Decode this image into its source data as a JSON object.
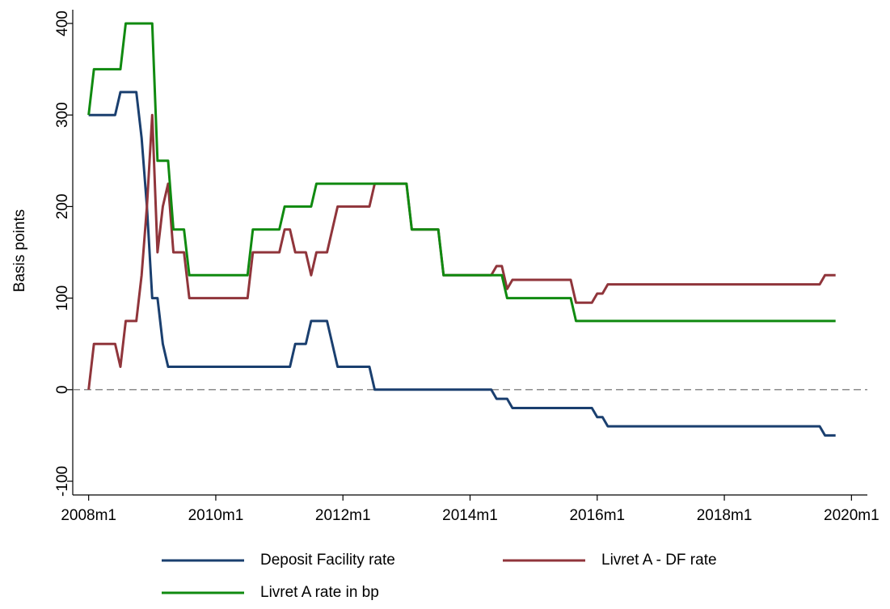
{
  "chart_data": {
    "type": "line",
    "y_label": "Basis points",
    "x": [
      "2008m1",
      "2008m2",
      "2008m3",
      "2008m4",
      "2008m5",
      "2008m6",
      "2008m7",
      "2008m8",
      "2008m9",
      "2008m10",
      "2008m11",
      "2008m12",
      "2009m1",
      "2009m2",
      "2009m3",
      "2009m4",
      "2009m5",
      "2009m6",
      "2009m7",
      "2009m8",
      "2009m9",
      "2009m10",
      "2009m11",
      "2009m12",
      "2010m1",
      "2010m2",
      "2010m3",
      "2010m4",
      "2010m5",
      "2010m6",
      "2010m7",
      "2010m8",
      "2010m9",
      "2010m10",
      "2010m11",
      "2010m12",
      "2011m1",
      "2011m2",
      "2011m3",
      "2011m4",
      "2011m5",
      "2011m6",
      "2011m7",
      "2011m8",
      "2011m9",
      "2011m10",
      "2011m11",
      "2011m12",
      "2012m1",
      "2012m2",
      "2012m3",
      "2012m4",
      "2012m5",
      "2012m6",
      "2012m7",
      "2012m8",
      "2012m9",
      "2012m10",
      "2012m11",
      "2012m12",
      "2013m1",
      "2013m2",
      "2013m3",
      "2013m4",
      "2013m5",
      "2013m6",
      "2013m7",
      "2013m8",
      "2013m9",
      "2013m10",
      "2013m11",
      "2013m12",
      "2014m1",
      "2014m2",
      "2014m3",
      "2014m4",
      "2014m5",
      "2014m6",
      "2014m7",
      "2014m8",
      "2014m9",
      "2014m10",
      "2014m11",
      "2014m12",
      "2015m1",
      "2015m2",
      "2015m3",
      "2015m4",
      "2015m5",
      "2015m6",
      "2015m7",
      "2015m8",
      "2015m9",
      "2015m10",
      "2015m11",
      "2015m12",
      "2016m1",
      "2016m2",
      "2016m3",
      "2016m4",
      "2016m5",
      "2016m6",
      "2016m7",
      "2016m8",
      "2016m9",
      "2016m10",
      "2016m11",
      "2016m12",
      "2017m1",
      "2017m2",
      "2017m3",
      "2017m4",
      "2017m5",
      "2017m6",
      "2017m7",
      "2017m8",
      "2017m9",
      "2017m10",
      "2017m11",
      "2017m12",
      "2018m1",
      "2018m2",
      "2018m3",
      "2018m4",
      "2018m5",
      "2018m6",
      "2018m7",
      "2018m8",
      "2018m9",
      "2018m10",
      "2018m11",
      "2018m12",
      "2019m1",
      "2019m2",
      "2019m3",
      "2019m4",
      "2019m5",
      "2019m6",
      "2019m7",
      "2019m8",
      "2019m9",
      "2019m10"
    ],
    "series": [
      {
        "name": "Deposit Facility rate",
        "color": "#1a3f6f",
        "values": [
          300,
          300,
          300,
          300,
          300,
          300,
          325,
          325,
          325,
          325,
          275,
          200,
          100,
          100,
          50,
          25,
          25,
          25,
          25,
          25,
          25,
          25,
          25,
          25,
          25,
          25,
          25,
          25,
          25,
          25,
          25,
          25,
          25,
          25,
          25,
          25,
          25,
          25,
          25,
          50,
          50,
          50,
          75,
          75,
          75,
          75,
          50,
          25,
          25,
          25,
          25,
          25,
          25,
          25,
          0,
          0,
          0,
          0,
          0,
          0,
          0,
          0,
          0,
          0,
          0,
          0,
          0,
          0,
          0,
          0,
          0,
          0,
          0,
          0,
          0,
          0,
          0,
          -10,
          -10,
          -10,
          -20,
          -20,
          -20,
          -20,
          -20,
          -20,
          -20,
          -20,
          -20,
          -20,
          -20,
          -20,
          -20,
          -20,
          -20,
          -20,
          -30,
          -30,
          -40,
          -40,
          -40,
          -40,
          -40,
          -40,
          -40,
          -40,
          -40,
          -40,
          -40,
          -40,
          -40,
          -40,
          -40,
          -40,
          -40,
          -40,
          -40,
          -40,
          -40,
          -40,
          -40,
          -40,
          -40,
          -40,
          -40,
          -40,
          -40,
          -40,
          -40,
          -40,
          -40,
          -40,
          -40,
          -40,
          -40,
          -40,
          -40,
          -40,
          -40,
          -50,
          -50,
          -50
        ]
      },
      {
        "name": "Livret A - DF rate",
        "color": "#90353b",
        "values": [
          0,
          50,
          50,
          50,
          50,
          50,
          25,
          75,
          75,
          75,
          125,
          200,
          300,
          150,
          200,
          225,
          150,
          150,
          150,
          100,
          100,
          100,
          100,
          100,
          100,
          100,
          100,
          100,
          100,
          100,
          100,
          150,
          150,
          150,
          150,
          150,
          150,
          175,
          175,
          150,
          150,
          150,
          125,
          150,
          150,
          150,
          175,
          200,
          200,
          200,
          200,
          200,
          200,
          200,
          225,
          225,
          225,
          225,
          225,
          225,
          225,
          175,
          175,
          175,
          175,
          175,
          175,
          125,
          125,
          125,
          125,
          125,
          125,
          125,
          125,
          125,
          125,
          135,
          135,
          110,
          120,
          120,
          120,
          120,
          120,
          120,
          120,
          120,
          120,
          120,
          120,
          120,
          95,
          95,
          95,
          95,
          105,
          105,
          115,
          115,
          115,
          115,
          115,
          115,
          115,
          115,
          115,
          115,
          115,
          115,
          115,
          115,
          115,
          115,
          115,
          115,
          115,
          115,
          115,
          115,
          115,
          115,
          115,
          115,
          115,
          115,
          115,
          115,
          115,
          115,
          115,
          115,
          115,
          115,
          115,
          115,
          115,
          115,
          115,
          125,
          125,
          125
        ]
      },
      {
        "name": "Livret A rate in bp",
        "color": "#108a10",
        "values": [
          300,
          350,
          350,
          350,
          350,
          350,
          350,
          400,
          400,
          400,
          400,
          400,
          400,
          250,
          250,
          250,
          175,
          175,
          175,
          125,
          125,
          125,
          125,
          125,
          125,
          125,
          125,
          125,
          125,
          125,
          125,
          175,
          175,
          175,
          175,
          175,
          175,
          200,
          200,
          200,
          200,
          200,
          200,
          225,
          225,
          225,
          225,
          225,
          225,
          225,
          225,
          225,
          225,
          225,
          225,
          225,
          225,
          225,
          225,
          225,
          225,
          175,
          175,
          175,
          175,
          175,
          175,
          125,
          125,
          125,
          125,
          125,
          125,
          125,
          125,
          125,
          125,
          125,
          125,
          100,
          100,
          100,
          100,
          100,
          100,
          100,
          100,
          100,
          100,
          100,
          100,
          100,
          75,
          75,
          75,
          75,
          75,
          75,
          75,
          75,
          75,
          75,
          75,
          75,
          75,
          75,
          75,
          75,
          75,
          75,
          75,
          75,
          75,
          75,
          75,
          75,
          75,
          75,
          75,
          75,
          75,
          75,
          75,
          75,
          75,
          75,
          75,
          75,
          75,
          75,
          75,
          75,
          75,
          75,
          75,
          75,
          75,
          75,
          75,
          75,
          75,
          75
        ]
      }
    ],
    "xlim": [
      "2007m10",
      "2020m4"
    ],
    "xticks": [
      "2008m1",
      "2010m1",
      "2012m1",
      "2014m1",
      "2016m1",
      "2018m1",
      "2020m1"
    ],
    "ylim": [
      -115,
      415
    ],
    "yticks": [
      -100,
      0,
      100,
      200,
      300,
      400
    ],
    "hline": 0,
    "grid": false,
    "legend_position": "bottom"
  }
}
